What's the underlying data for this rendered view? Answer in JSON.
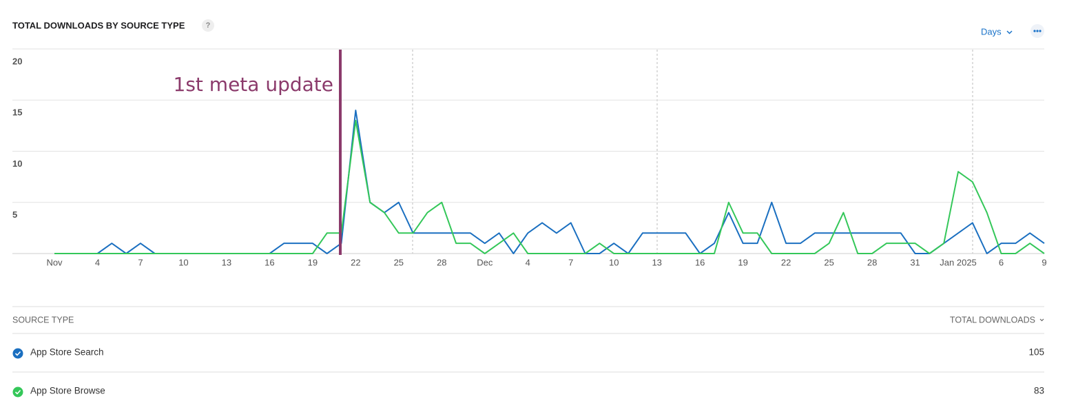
{
  "header": {
    "title": "TOTAL DOWNLOADS BY SOURCE TYPE",
    "help": "?",
    "period": "Days"
  },
  "chart_data": {
    "type": "line",
    "categories": [
      "Nov",
      null,
      null,
      "4",
      null,
      null,
      "7",
      null,
      null,
      "10",
      null,
      null,
      "13",
      null,
      null,
      "16",
      null,
      null,
      "19",
      null,
      null,
      "22",
      null,
      null,
      "25",
      null,
      null,
      "28",
      null,
      null,
      "Dec",
      null,
      null,
      "4",
      null,
      null,
      "7",
      null,
      null,
      "10",
      null,
      null,
      "13",
      null,
      null,
      "16",
      null,
      null,
      "19",
      null,
      null,
      "22",
      null,
      null,
      "25",
      null,
      null,
      "28",
      null,
      null,
      "31",
      null,
      null,
      "Jan 2025",
      null,
      null,
      "6",
      null,
      null,
      "9"
    ],
    "series": [
      {
        "name": "App Store Search",
        "color": "#1a6fc0",
        "values": [
          0,
          0,
          0,
          0,
          1,
          0,
          1,
          0,
          0,
          0,
          0,
          0,
          0,
          0,
          0,
          0,
          1,
          1,
          1,
          0,
          1,
          14,
          5,
          4,
          5,
          2,
          2,
          2,
          2,
          2,
          1,
          2,
          0,
          2,
          3,
          2,
          3,
          0,
          0,
          1,
          0,
          2,
          2,
          2,
          2,
          0,
          1,
          4,
          1,
          1,
          5,
          1,
          1,
          2,
          2,
          2,
          2,
          2,
          2,
          2,
          0,
          0,
          1,
          2,
          3,
          0,
          1,
          1,
          2,
          1
        ]
      },
      {
        "name": "App Store Browse",
        "color": "#34c759",
        "values": [
          0,
          0,
          0,
          0,
          0,
          0,
          0,
          0,
          0,
          0,
          0,
          0,
          0,
          0,
          0,
          0,
          0,
          0,
          0,
          2,
          2,
          13,
          5,
          4,
          2,
          2,
          4,
          5,
          1,
          1,
          0,
          1,
          2,
          0,
          0,
          0,
          0,
          0,
          1,
          0,
          0,
          0,
          0,
          0,
          0,
          0,
          0,
          5,
          2,
          2,
          0,
          0,
          0,
          0,
          1,
          4,
          0,
          0,
          1,
          1,
          1,
          0,
          1,
          8,
          7,
          4,
          0,
          0,
          1,
          0
        ]
      }
    ],
    "ylim": [
      0,
      20
    ],
    "yticks": [
      5,
      10,
      15,
      20
    ],
    "grid": true,
    "annotation": "1st meta update"
  },
  "table": {
    "columns": [
      "SOURCE TYPE",
      "TOTAL DOWNLOADS"
    ],
    "totals": [
      105,
      83
    ]
  }
}
